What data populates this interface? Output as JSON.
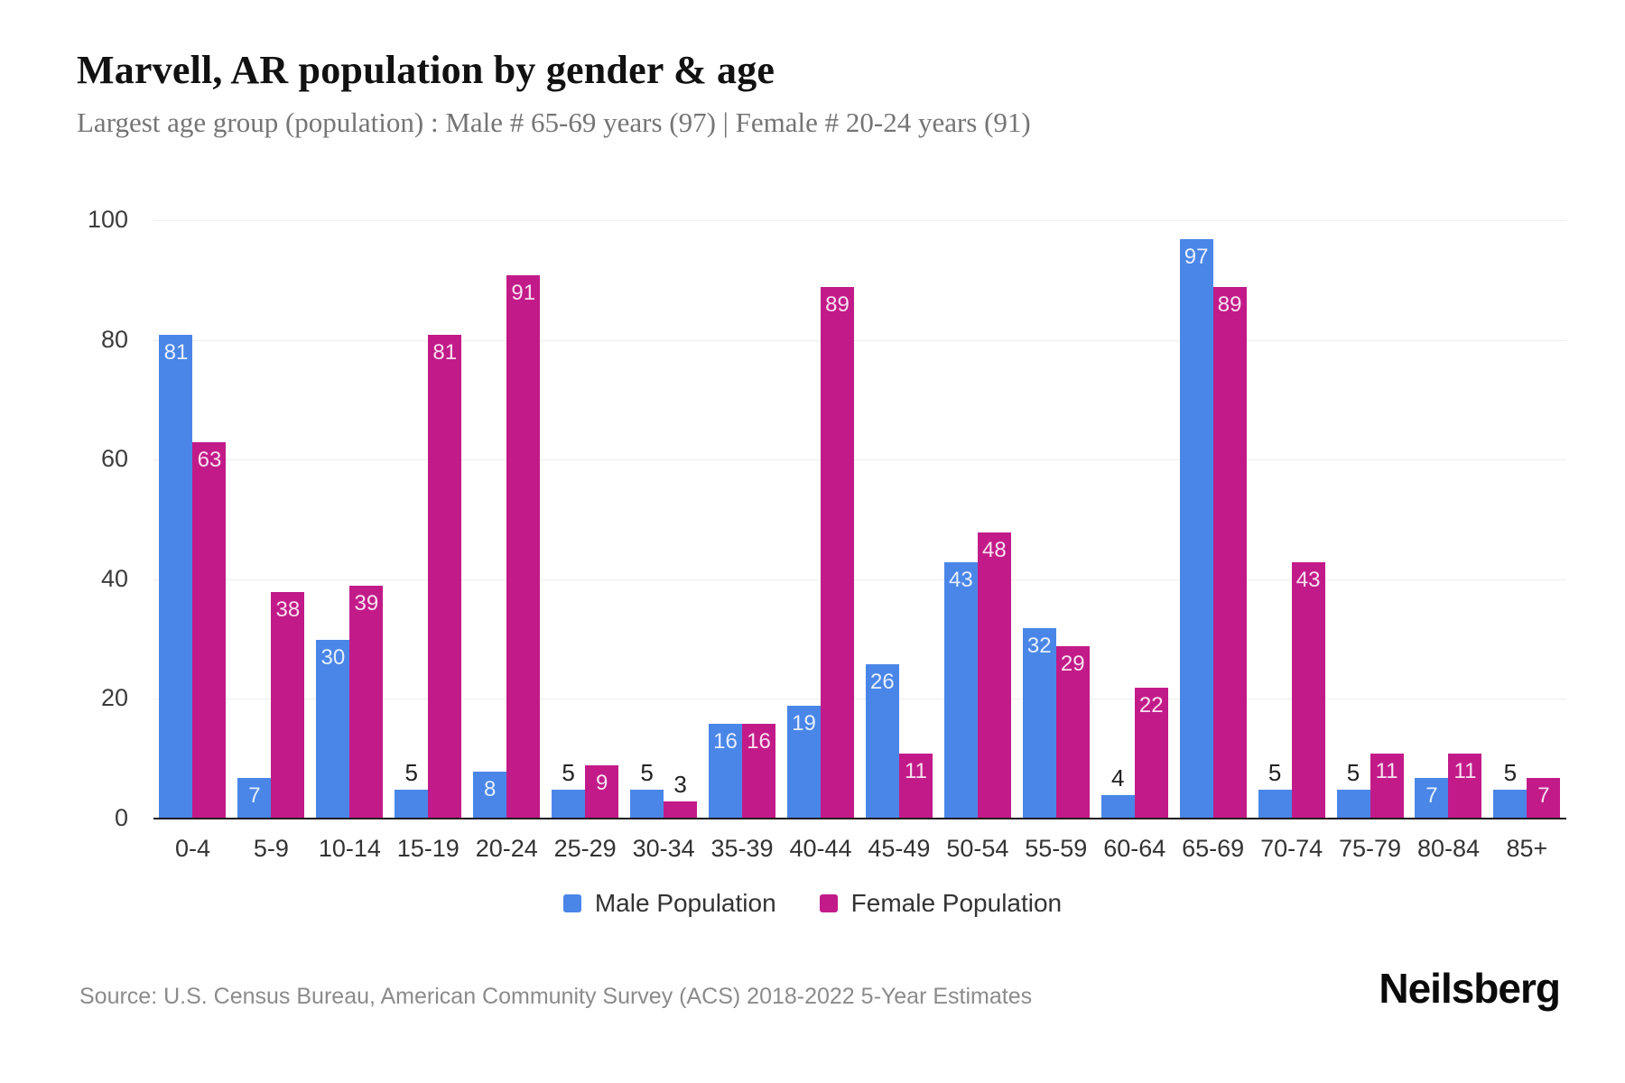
{
  "title": "Marvell, AR population by gender & age",
  "subtitle": "Largest age group (population) : Male # 65-69 years (97) | Female # 20-24 years (91)",
  "chart_data": {
    "type": "bar",
    "title": "Marvell, AR population by gender & age",
    "categories": [
      "0-4",
      "5-9",
      "10-14",
      "15-19",
      "20-24",
      "25-29",
      "30-34",
      "35-39",
      "40-44",
      "45-49",
      "50-54",
      "55-59",
      "60-64",
      "65-69",
      "70-74",
      "75-79",
      "80-84",
      "85+"
    ],
    "series": [
      {
        "name": "Male Population",
        "color": "#4A86E8",
        "values": [
          81,
          7,
          30,
          5,
          8,
          5,
          5,
          16,
          19,
          26,
          43,
          32,
          4,
          97,
          5,
          5,
          7,
          5
        ]
      },
      {
        "name": "Female Population",
        "color": "#C21B89",
        "values": [
          63,
          38,
          39,
          81,
          91,
          9,
          3,
          16,
          89,
          11,
          48,
          29,
          22,
          89,
          43,
          11,
          11,
          7
        ]
      }
    ],
    "xlabel": "",
    "ylabel": "",
    "ylim": [
      0,
      100
    ],
    "yticks": [
      0,
      20,
      40,
      60,
      80,
      100
    ],
    "grid": "horizontal",
    "legend_position": "bottom",
    "value_label_rule": "inside bar top when value >= 7, above bar otherwise"
  },
  "footer": {
    "source": "Source: U.S. Census Bureau, American Community Survey (ACS) 2018-2022 5-Year Estimates",
    "logo": "Neilsberg"
  }
}
